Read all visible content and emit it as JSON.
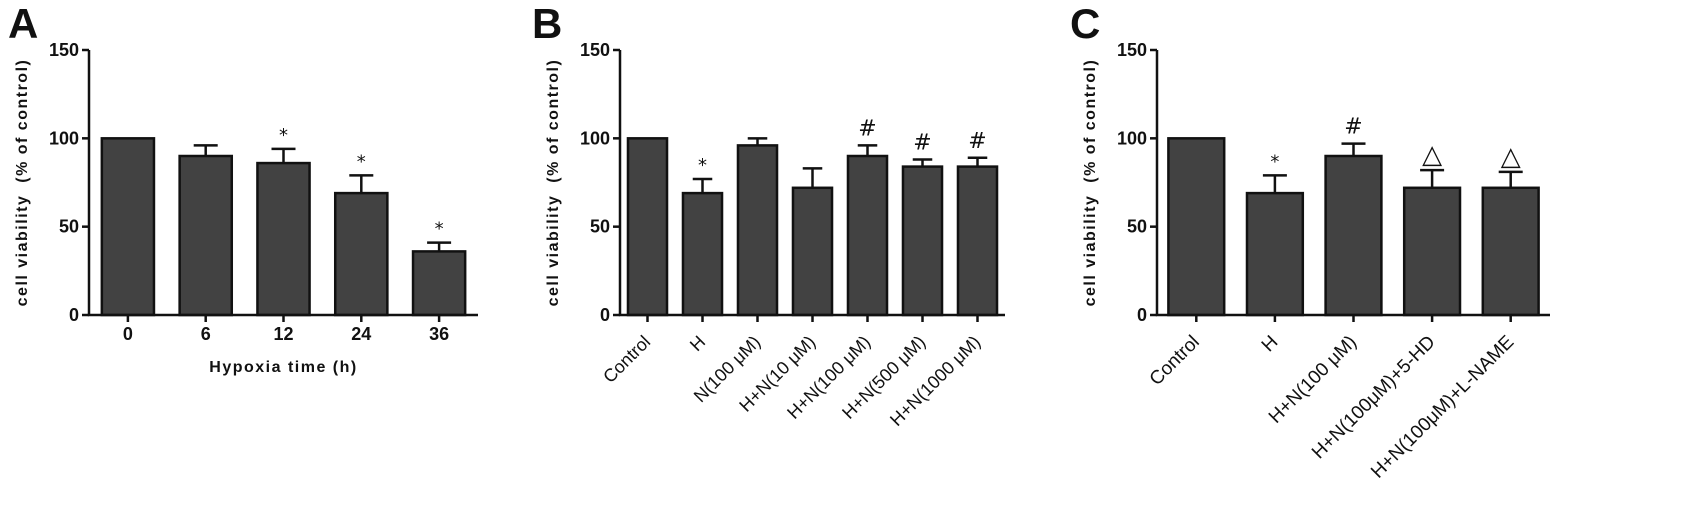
{
  "chart_data": [
    {
      "panel_label": "A",
      "type": "bar",
      "categories": [
        "0",
        "6",
        "12",
        "24",
        "36"
      ],
      "values": [
        100,
        90,
        86,
        69,
        36
      ],
      "errors": [
        0,
        6,
        8,
        10,
        5
      ],
      "markers": [
        "",
        "",
        "*",
        "*",
        "*"
      ],
      "xlabel": "Hypoxia time (h)",
      "ylabel": "cell viability  (% of control)",
      "ylim": [
        0,
        150
      ],
      "yticks": [
        0,
        50,
        100,
        150
      ],
      "grid": false,
      "bar_color": "#424242"
    },
    {
      "panel_label": "B",
      "type": "bar",
      "categories": [
        "Control",
        "H",
        "N(100 μM)",
        "H+N(10 μM)",
        "H+N(100 μM)",
        "H+N(500 μM)",
        "H+N(1000 μM)"
      ],
      "values": [
        100,
        69,
        96,
        72,
        90,
        84,
        84
      ],
      "errors": [
        0,
        8,
        4,
        11,
        6,
        4,
        5
      ],
      "markers": [
        "",
        "*",
        "",
        "",
        "#",
        "#",
        "#"
      ],
      "ylabel": "cell viability  (% of control)",
      "ylim": [
        0,
        150
      ],
      "yticks": [
        0,
        50,
        100,
        150
      ],
      "grid": false,
      "bar_color": "#424242"
    },
    {
      "panel_label": "C",
      "type": "bar",
      "categories": [
        "Control",
        "H",
        "H+N(100 μM)",
        "H+N(100μM)+5-HD",
        "H+N(100μM)+L-NAME"
      ],
      "values": [
        100,
        69,
        90,
        72,
        72
      ],
      "errors": [
        0,
        10,
        7,
        10,
        9
      ],
      "markers": [
        "",
        "*",
        "#",
        "△",
        "△"
      ],
      "ylabel": "cell viability  (% of control)",
      "ylim": [
        0,
        150
      ],
      "yticks": [
        0,
        50,
        100,
        150
      ],
      "grid": false,
      "bar_color": "#424242"
    }
  ]
}
